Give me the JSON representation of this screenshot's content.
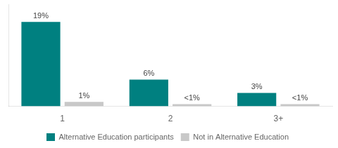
{
  "chart_data": {
    "type": "bar",
    "categories": [
      "1",
      "2",
      "3+"
    ],
    "series": [
      {
        "name": "Alternative Education participants",
        "color": "#008080",
        "values": [
          19,
          6,
          3
        ],
        "value_labels": [
          "19%",
          "6%",
          "3%"
        ]
      },
      {
        "name": "Not in Alternative Education",
        "color": "#c8c8c8",
        "values": [
          1,
          0.5,
          0.5
        ],
        "value_labels": [
          "1%",
          "<1%",
          "<1%"
        ]
      }
    ],
    "ylim": [
      0,
      23
    ],
    "data_labels": true,
    "tick_labels": "x",
    "grid": false,
    "legend": "bottom"
  }
}
